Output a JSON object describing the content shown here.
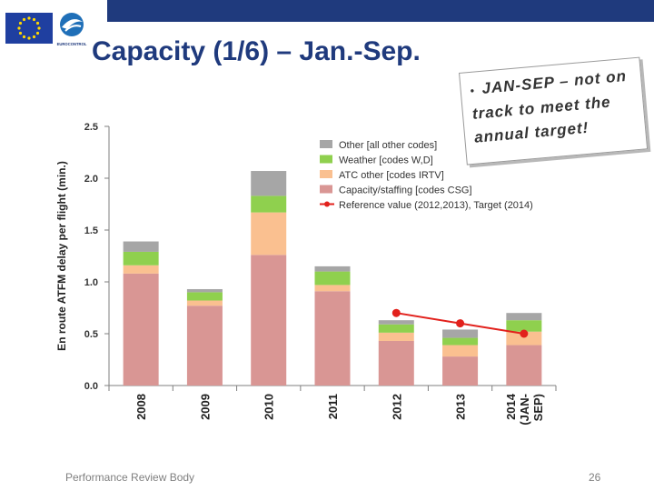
{
  "header": {
    "title": "Capacity (1/6) – Jan.-Sep.",
    "ec_logo_text": "EUROCONTROL"
  },
  "callout": {
    "bullet": "•",
    "text": "JAN-SEP – not on track to meet the annual target!"
  },
  "footer": {
    "left": "Performance Review Body",
    "page_number": "26"
  },
  "colors": {
    "capacity": "#d99694",
    "atc_other": "#fac090",
    "weather": "#8fd04e",
    "other": "#a6a6a6",
    "reference": "#e2211c",
    "brand": "#1f3a7d"
  },
  "chart_data": {
    "type": "bar",
    "stacked": true,
    "title": "",
    "ylabel": "En route ATFM delay per flight (min.)",
    "xlabel": "",
    "ylim": [
      0,
      2.5
    ],
    "yticks": [
      "2.5",
      "2.0",
      "1.5",
      "1.0",
      "0.5",
      "0.0"
    ],
    "categories": [
      "2008",
      "2009",
      "2010",
      "2011",
      "2012",
      "2013",
      "2014 (JAN-SEP)"
    ],
    "category_lines": [
      [
        "2008"
      ],
      [
        "2009"
      ],
      [
        "2010"
      ],
      [
        "2011"
      ],
      [
        "2012"
      ],
      [
        "2013"
      ],
      [
        "2014",
        "(JAN-",
        "SEP)"
      ]
    ],
    "series": [
      {
        "name": "Capacity/staffing [codes CSG]",
        "color_key": "capacity",
        "values": [
          1.08,
          0.77,
          1.26,
          0.91,
          0.43,
          0.28,
          0.39
        ]
      },
      {
        "name": "ATC other [codes IRTV]",
        "color_key": "atc_other",
        "values": [
          0.08,
          0.05,
          0.41,
          0.06,
          0.08,
          0.11,
          0.13
        ]
      },
      {
        "name": "Weather [codes W,D]",
        "color_key": "weather",
        "values": [
          0.13,
          0.08,
          0.16,
          0.13,
          0.08,
          0.07,
          0.11
        ]
      },
      {
        "name": "Other [all other codes]",
        "color_key": "other",
        "values": [
          0.1,
          0.03,
          0.24,
          0.05,
          0.04,
          0.08,
          0.07
        ]
      }
    ],
    "reference": {
      "name": "Reference value (2012,2013), Target (2014)",
      "color_key": "reference",
      "category_index": [
        4,
        5,
        6
      ],
      "values": [
        0.7,
        0.6,
        0.5
      ]
    },
    "legend_order": [
      3,
      2,
      1,
      0
    ],
    "legend_position": "top-right",
    "grid": false
  }
}
